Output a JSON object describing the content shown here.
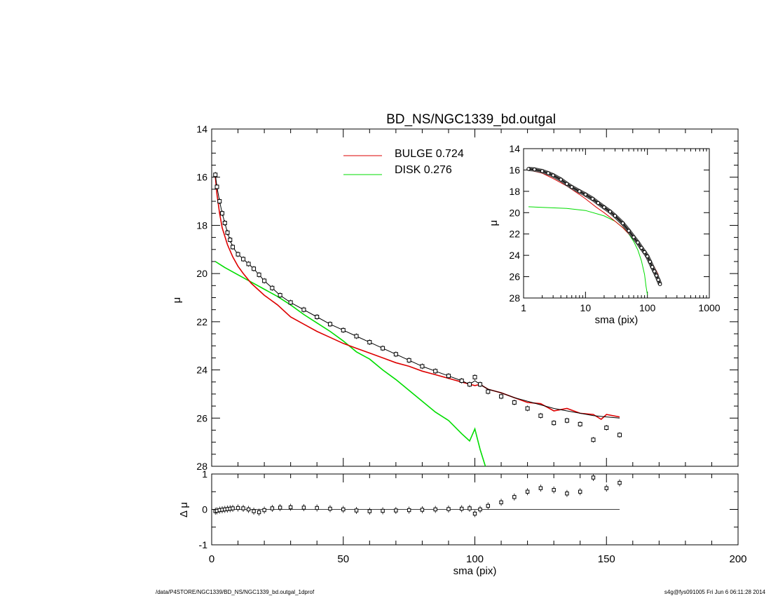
{
  "title": "BD_NS/NGC1339_bd.outgal",
  "footer": {
    "left": "/data/P4STORE/NGC1339/BD_NS/NGC1339_bd.outgal_1dprof",
    "right": "s4g@fys091005  Fri Jun  6 06:11:28 2014"
  },
  "colors": {
    "bulge": "#dd0000",
    "disk": "#00dd00",
    "data": "#000000",
    "model": "#000000"
  },
  "legend": [
    {
      "label": "BULGE  0.724",
      "color": "#dd0000"
    },
    {
      "label": "DISK  0.276",
      "color": "#00dd00"
    }
  ],
  "chart_data": [
    {
      "id": "main",
      "type": "line",
      "xlabel": "",
      "ylabel": "μ",
      "xlim": [
        0,
        200
      ],
      "ylim": [
        28,
        14
      ],
      "yticks": [
        "14",
        "16",
        "18",
        "20",
        "22",
        "24",
        "26",
        "28"
      ],
      "profile_sma": [
        1.4,
        2,
        3,
        4,
        5,
        6,
        7,
        8,
        10,
        12,
        14,
        16,
        18,
        20,
        23,
        26,
        30,
        35,
        40,
        45,
        50,
        55,
        60,
        65,
        70,
        75,
        80,
        85,
        90,
        95,
        98,
        100,
        102,
        105,
        110,
        115,
        120,
        125,
        130,
        135,
        140,
        145,
        150,
        155
      ],
      "data_mu": [
        15.9,
        16.4,
        17.0,
        17.5,
        17.9,
        18.3,
        18.6,
        18.9,
        19.2,
        19.4,
        19.6,
        19.8,
        20.05,
        20.3,
        20.6,
        20.9,
        21.2,
        21.5,
        21.8,
        22.1,
        22.35,
        22.6,
        22.85,
        23.1,
        23.35,
        23.6,
        23.85,
        24.05,
        24.25,
        24.45,
        24.6,
        24.3,
        24.6,
        24.9,
        25.1,
        25.35,
        25.6,
        25.9,
        26.2,
        26.1,
        26.25,
        26.9,
        26.4,
        26.7
      ],
      "model_mu": [
        15.9,
        16.4,
        17.0,
        17.5,
        17.9,
        18.3,
        18.6,
        18.9,
        19.2,
        19.4,
        19.6,
        19.8,
        20.05,
        20.3,
        20.6,
        20.9,
        21.2,
        21.5,
        21.8,
        22.1,
        22.35,
        22.6,
        22.85,
        23.1,
        23.35,
        23.6,
        23.85,
        24.05,
        24.25,
        24.45,
        24.6,
        24.45,
        24.6,
        24.8,
        24.95,
        25.15,
        25.3,
        25.45,
        25.6,
        25.7,
        25.8,
        25.9,
        25.95,
        26.0
      ],
      "series": [
        {
          "name": "BULGE",
          "x": [
            1.4,
            2,
            3,
            4,
            6,
            8,
            10,
            12,
            15,
            20,
            25,
            30,
            35,
            40,
            45,
            50,
            55,
            60,
            65,
            70,
            75,
            80,
            85,
            90,
            95,
            100,
            102,
            105,
            110,
            115,
            120,
            125,
            130,
            135,
            140,
            145,
            148,
            150,
            155
          ],
          "y": [
            16.0,
            16.7,
            17.5,
            18.1,
            18.8,
            19.3,
            19.7,
            20.0,
            20.4,
            20.9,
            21.3,
            21.8,
            22.1,
            22.4,
            22.65,
            22.9,
            23.1,
            23.3,
            23.5,
            23.7,
            23.85,
            24.05,
            24.2,
            24.35,
            24.5,
            24.65,
            24.6,
            24.8,
            24.95,
            25.15,
            25.35,
            25.4,
            25.7,
            25.6,
            25.8,
            25.85,
            26.05,
            25.85,
            25.95
          ]
        },
        {
          "name": "DISK",
          "x": [
            1.4,
            5,
            10,
            15,
            20,
            25,
            30,
            35,
            40,
            45,
            50,
            55,
            60,
            65,
            70,
            75,
            80,
            85,
            90,
            95,
            98,
            100,
            102,
            104
          ],
          "y": [
            19.5,
            19.75,
            20.05,
            20.35,
            20.65,
            20.95,
            21.3,
            21.7,
            22.05,
            22.4,
            22.8,
            23.25,
            23.55,
            24.0,
            24.4,
            24.85,
            25.3,
            25.75,
            26.1,
            26.65,
            26.95,
            26.45,
            27.3,
            28.0
          ]
        }
      ]
    },
    {
      "id": "residual",
      "type": "scatter",
      "xlabel": "sma (pix)",
      "ylabel": "Δ μ",
      "xlim": [
        0,
        200
      ],
      "ylim": [
        -1,
        1
      ],
      "xticks": [
        "0",
        "50",
        "100",
        "150",
        "200"
      ],
      "yticks": [
        "-1",
        "0",
        "1"
      ],
      "x": [
        1.4,
        2,
        3,
        4,
        5,
        6,
        7,
        8,
        10,
        12,
        14,
        16,
        18,
        20,
        23,
        26,
        30,
        35,
        40,
        45,
        50,
        55,
        60,
        65,
        70,
        75,
        80,
        85,
        90,
        95,
        98,
        100,
        102,
        105,
        110,
        115,
        120,
        125,
        130,
        135,
        140,
        145,
        150,
        155
      ],
      "y": [
        -0.05,
        -0.04,
        -0.02,
        -0.01,
        0.0,
        0.01,
        0.02,
        0.03,
        0.04,
        0.03,
        0.0,
        -0.05,
        -0.08,
        -0.02,
        0.03,
        0.05,
        0.06,
        0.05,
        0.04,
        0.02,
        0.0,
        -0.03,
        -0.05,
        -0.04,
        -0.03,
        -0.02,
        -0.01,
        0.0,
        0.01,
        0.02,
        0.03,
        -0.12,
        0.0,
        0.1,
        0.2,
        0.35,
        0.5,
        0.6,
        0.55,
        0.45,
        0.5,
        0.9,
        0.6,
        0.75
      ],
      "zero_line_x": [
        0,
        155
      ]
    },
    {
      "id": "inset",
      "type": "line",
      "xlabel": "sma (pix)",
      "ylabel": "μ",
      "xscale": "log",
      "xlim": [
        1,
        1000
      ],
      "ylim": [
        28,
        14
      ],
      "xticks": [
        "1",
        "10",
        "100",
        "1000"
      ],
      "yticks": [
        "14",
        "16",
        "18",
        "20",
        "22",
        "24",
        "26",
        "28"
      ],
      "data_x": [
        1.2,
        1.5,
        2,
        2.5,
        3,
        4,
        5,
        6,
        8,
        10,
        13,
        16,
        20,
        25,
        30,
        40,
        50,
        60,
        70,
        80,
        90,
        100,
        110,
        120,
        130,
        140,
        150,
        160
      ],
      "data_y": [
        15.9,
        15.95,
        16.1,
        16.3,
        16.5,
        16.9,
        17.3,
        17.6,
        18.0,
        18.3,
        18.7,
        19.1,
        19.5,
        19.9,
        20.3,
        21.0,
        21.7,
        22.3,
        22.8,
        23.3,
        23.7,
        24.1,
        24.6,
        25.1,
        25.5,
        25.9,
        26.3,
        26.7
      ],
      "bulge_x": [
        1.2,
        2,
        3,
        5,
        8,
        10,
        15,
        20,
        30,
        40,
        50,
        70,
        100,
        150
      ],
      "bulge_y": [
        16.0,
        16.3,
        16.8,
        17.5,
        18.3,
        18.7,
        19.5,
        20.0,
        20.8,
        21.4,
        22.0,
        22.8,
        23.9,
        25.8
      ],
      "disk_x": [
        1.2,
        2,
        5,
        10,
        20,
        30,
        40,
        50,
        60,
        70,
        80,
        90,
        95,
        100
      ],
      "disk_y": [
        19.45,
        19.5,
        19.6,
        19.8,
        20.3,
        20.8,
        21.4,
        22.0,
        22.7,
        23.5,
        24.5,
        25.8,
        26.9,
        27.7
      ]
    }
  ]
}
